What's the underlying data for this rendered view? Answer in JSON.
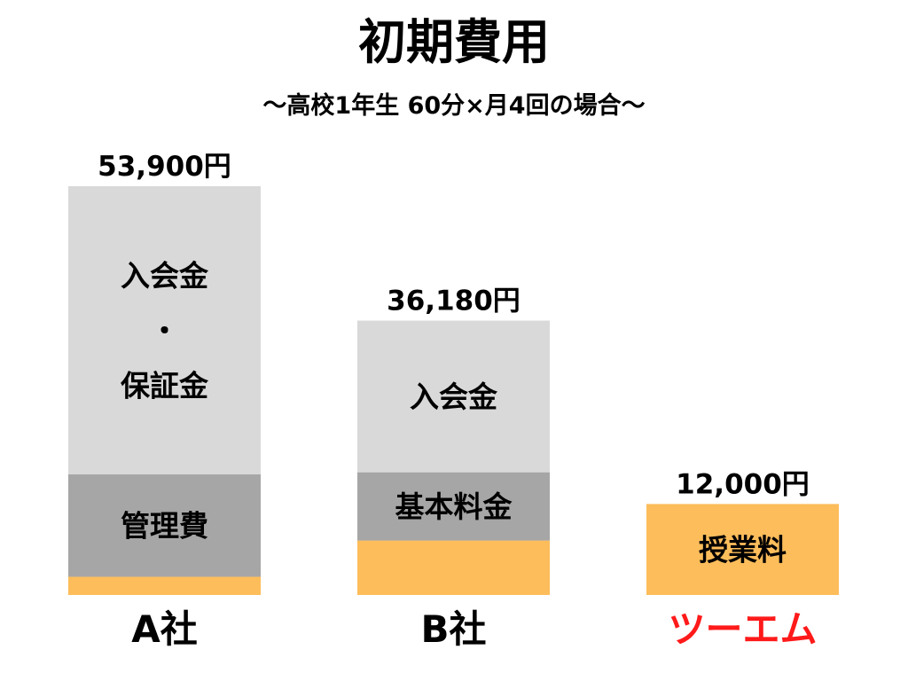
{
  "chart_data": {
    "type": "bar",
    "stacked": true,
    "title": "初期費用",
    "subtitle": "〜高校1年生 60分×月4回の場合〜",
    "xlabel": "",
    "ylabel": "",
    "unit": "円",
    "grid": false,
    "categories": [
      "A社",
      "B社",
      "ツーエム"
    ],
    "category_colors": [
      "#000000",
      "#000000",
      "#ff1a1a"
    ],
    "totals": [
      53900,
      36180,
      12000
    ],
    "total_labels": [
      "53,900円",
      "36,180円",
      "12,000円"
    ],
    "bars": [
      {
        "category": "A社",
        "segments": [
          {
            "value": 2400,
            "color": "#fdbd5b",
            "label_lines": []
          },
          {
            "value": 13500,
            "color": "#a6a6a6",
            "label_lines": [
              "管理費"
            ]
          },
          {
            "value": 38000,
            "color": "#d9d9d9",
            "label_lines": [
              "入会金",
              "・",
              "保証金"
            ]
          }
        ]
      },
      {
        "category": "B社",
        "segments": [
          {
            "value": 7180,
            "color": "#fdbd5b",
            "label_lines": []
          },
          {
            "value": 9000,
            "color": "#a6a6a6",
            "label_lines": [
              "基本料金"
            ]
          },
          {
            "value": 20000,
            "color": "#d9d9d9",
            "label_lines": [
              "入会金"
            ]
          }
        ]
      },
      {
        "category": "ツーエム",
        "segments": [
          {
            "value": 12000,
            "color": "#fdbd5b",
            "label_lines": [
              "授業料"
            ]
          }
        ]
      }
    ],
    "ylim": [
      0,
      53900
    ]
  }
}
